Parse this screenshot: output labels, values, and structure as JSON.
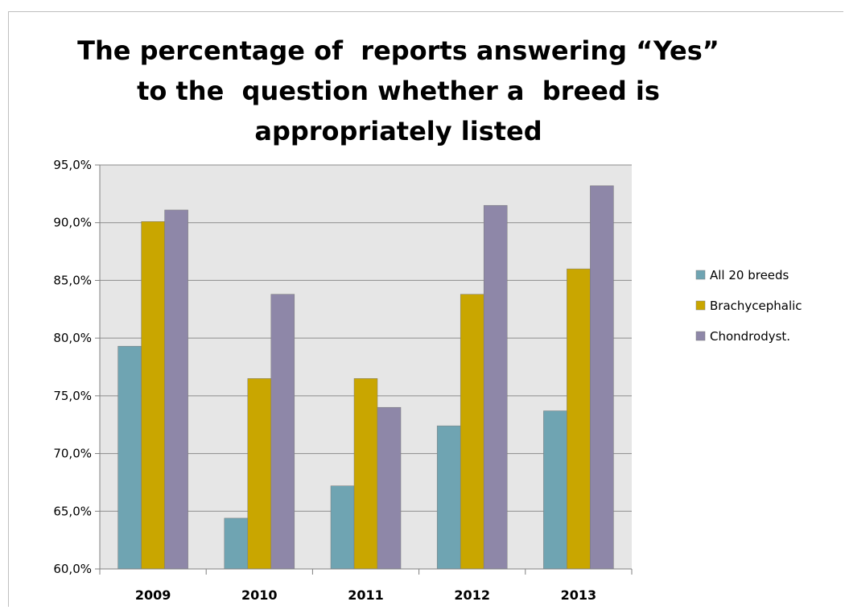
{
  "chart_data": {
    "type": "bar",
    "title_lines": [
      "The percentage of  reports answering “Yes”",
      "to the  question whether a  breed is",
      "appropriately listed"
    ],
    "categories": [
      "2009",
      "2010",
      "2011",
      "2012",
      "2013"
    ],
    "series": [
      {
        "name": "All 20 breeds",
        "color": "#6fa4b2",
        "values": [
          79.3,
          64.4,
          67.2,
          72.4,
          73.7
        ]
      },
      {
        "name": "Brachycephalic",
        "color": "#c9a600",
        "values": [
          90.1,
          76.5,
          76.5,
          83.8,
          86.0
        ]
      },
      {
        "name": "Chondrodyst.",
        "color": "#8e87a8",
        "values": [
          91.1,
          83.8,
          74.0,
          91.5,
          93.2
        ]
      }
    ],
    "ylim": [
      60,
      95
    ],
    "ytick_step": 5,
    "ytick_labels": [
      "60,0%",
      "65,0%",
      "70,0%",
      "75,0%",
      "80,0%",
      "85,0%",
      "90,0%",
      "95,0%"
    ],
    "grid": true,
    "legend": "right",
    "plot_background": "#e6e6e6",
    "gridline_color": "#8c8c8c"
  }
}
